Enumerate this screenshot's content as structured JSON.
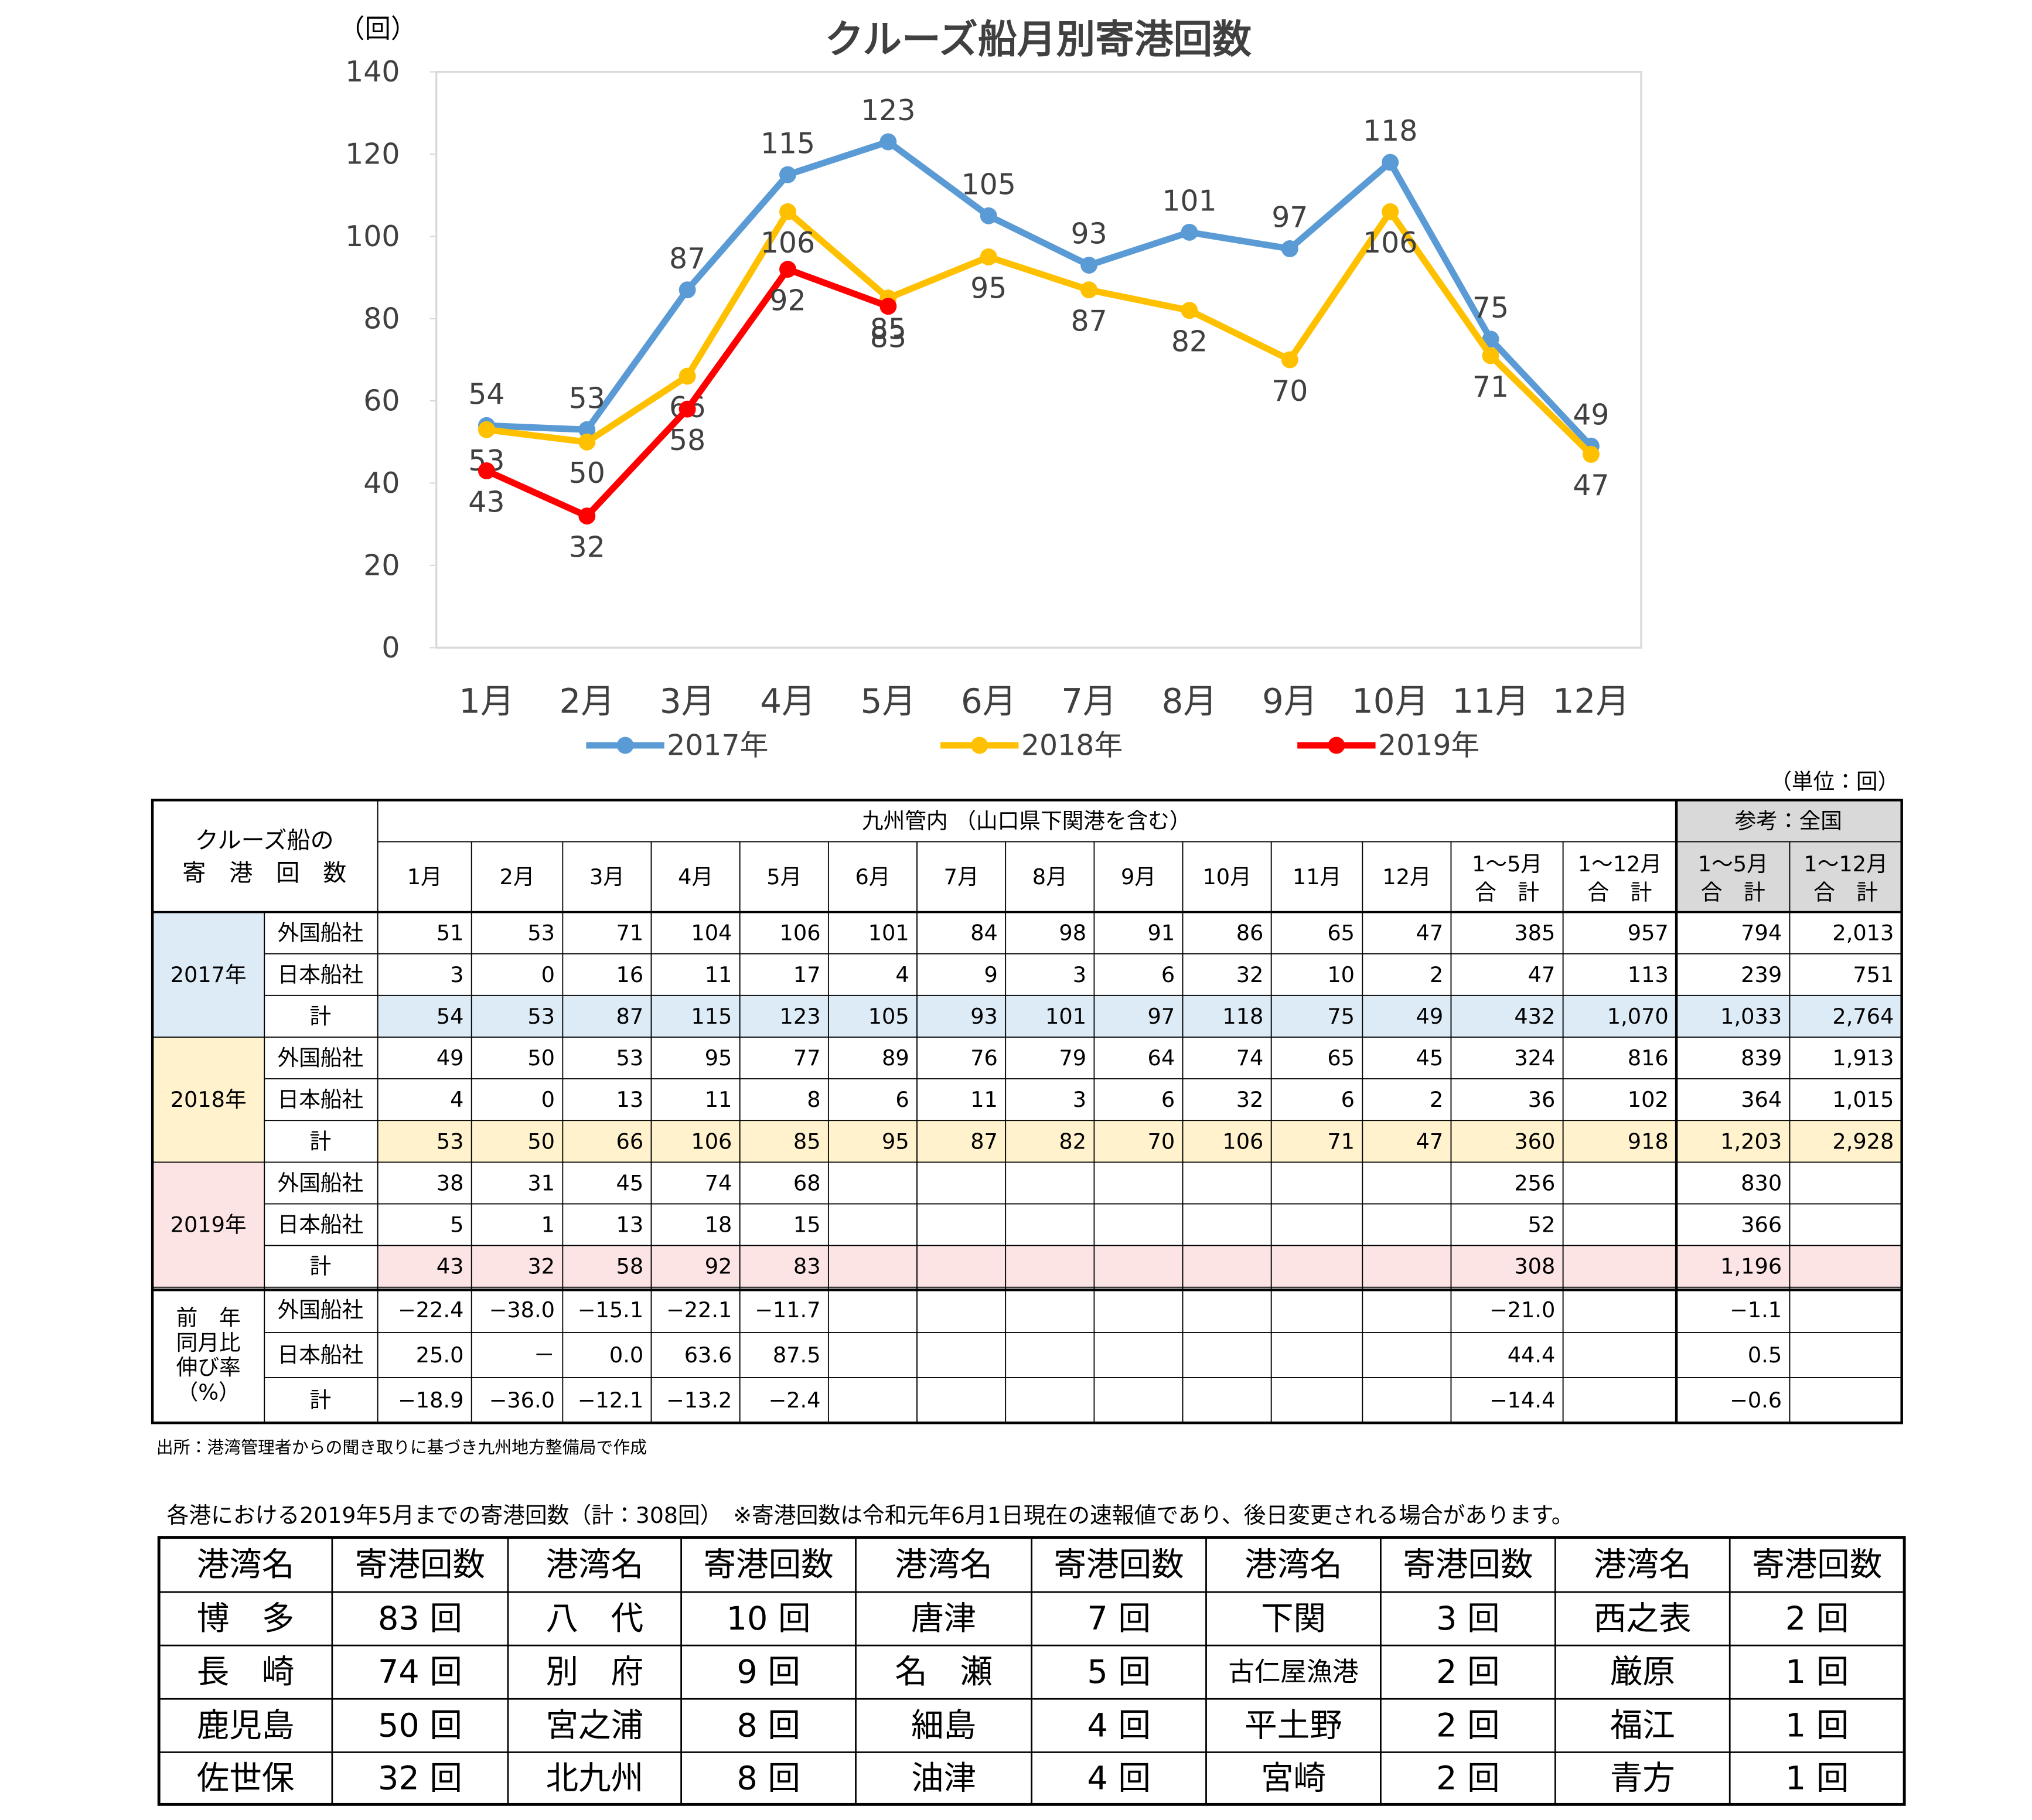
{
  "chart_data": {
    "type": "line",
    "title": "クルーズ船月別寄港回数",
    "y_label": "（回）",
    "categories": [
      "1月",
      "2月",
      "3月",
      "4月",
      "5月",
      "6月",
      "7月",
      "8月",
      "9月",
      "10月",
      "11月",
      "12月"
    ],
    "series": [
      {
        "name": "2017年",
        "color": "#5b9bd5",
        "values": [
          54,
          53,
          87,
          115,
          123,
          105,
          93,
          101,
          97,
          118,
          75,
          49
        ]
      },
      {
        "name": "2018年",
        "color": "#ffc000",
        "values": [
          53,
          50,
          66,
          106,
          85,
          95,
          87,
          82,
          70,
          106,
          71,
          47
        ]
      },
      {
        "name": "2019年",
        "color": "#ff0000",
        "values": [
          43,
          32,
          58,
          92,
          83,
          null,
          null,
          null,
          null,
          null,
          null,
          null
        ]
      }
    ],
    "ylim": [
      0,
      140
    ],
    "yticks": [
      0,
      20,
      40,
      60,
      80,
      100,
      120,
      140
    ],
    "grid": false,
    "legend": "bottom"
  },
  "table": {
    "unit": "（単位：回）",
    "corner": [
      "クルーズ船の",
      "寄　港　回　数"
    ],
    "region": "九州管内 （山口県下関港を含む）",
    "reference": "参考：全国",
    "columns": [
      [
        "1月"
      ],
      [
        "2月"
      ],
      [
        "3月"
      ],
      [
        "4月"
      ],
      [
        "5月"
      ],
      [
        "6月"
      ],
      [
        "7月"
      ],
      [
        "8月"
      ],
      [
        "9月"
      ],
      [
        "10月"
      ],
      [
        "11月"
      ],
      [
        "12月"
      ],
      [
        "1～5月",
        "合　計"
      ],
      [
        "1～12月",
        "合　計"
      ],
      [
        "1～5月",
        "合　計"
      ],
      [
        "1～12月",
        "合　計"
      ]
    ],
    "groups": [
      {
        "label": [
          "2017年"
        ],
        "rows": [
          {
            "label": "外国船社",
            "cells": [
              "51",
              "53",
              "71",
              "104",
              "106",
              "101",
              "84",
              "98",
              "91",
              "86",
              "65",
              "47",
              "385",
              "957",
              "794",
              "2,013"
            ]
          },
          {
            "label": "日本船社",
            "cells": [
              "3",
              "0",
              "16",
              "11",
              "17",
              "4",
              "9",
              "3",
              "6",
              "32",
              "10",
              "2",
              "47",
              "113",
              "239",
              "751"
            ]
          },
          {
            "label": "計",
            "cells": [
              "54",
              "53",
              "87",
              "115",
              "123",
              "105",
              "93",
              "101",
              "97",
              "118",
              "75",
              "49",
              "432",
              "1,070",
              "1,033",
              "2,764"
            ]
          }
        ]
      },
      {
        "label": [
          "2018年"
        ],
        "rows": [
          {
            "label": "外国船社",
            "cells": [
              "49",
              "50",
              "53",
              "95",
              "77",
              "89",
              "76",
              "79",
              "64",
              "74",
              "65",
              "45",
              "324",
              "816",
              "839",
              "1,913"
            ]
          },
          {
            "label": "日本船社",
            "cells": [
              "4",
              "0",
              "13",
              "11",
              "8",
              "6",
              "11",
              "3",
              "6",
              "32",
              "6",
              "2",
              "36",
              "102",
              "364",
              "1,015"
            ]
          },
          {
            "label": "計",
            "cells": [
              "53",
              "50",
              "66",
              "106",
              "85",
              "95",
              "87",
              "82",
              "70",
              "106",
              "71",
              "47",
              "360",
              "918",
              "1,203",
              "2,928"
            ]
          }
        ]
      },
      {
        "label": [
          "2019年"
        ],
        "rows": [
          {
            "label": "外国船社",
            "cells": [
              "38",
              "31",
              "45",
              "74",
              "68",
              null,
              null,
              null,
              null,
              null,
              null,
              null,
              "256",
              null,
              "830",
              null
            ]
          },
          {
            "label": "日本船社",
            "cells": [
              "5",
              "1",
              "13",
              "18",
              "15",
              null,
              null,
              null,
              null,
              null,
              null,
              null,
              "52",
              null,
              "366",
              null
            ]
          },
          {
            "label": "計",
            "cells": [
              "43",
              "32",
              "58",
              "92",
              "83",
              null,
              null,
              null,
              null,
              null,
              null,
              null,
              "308",
              null,
              "1,196",
              null
            ]
          }
        ]
      },
      {
        "label": [
          "前　年",
          "同月比",
          "伸び率",
          "（%）"
        ],
        "rows": [
          {
            "label": "外国船社",
            "cells": [
              "−22.4",
              "−38.0",
              "−15.1",
              "−22.1",
              "−11.7",
              null,
              null,
              null,
              null,
              null,
              null,
              null,
              "−21.0",
              null,
              "−1.1",
              null
            ]
          },
          {
            "label": "日本船社",
            "cells": [
              "25.0",
              "－",
              "0.0",
              "63.6",
              "87.5",
              null,
              null,
              null,
              null,
              null,
              null,
              null,
              "44.4",
              null,
              "0.5",
              null
            ]
          },
          {
            "label": "計",
            "cells": [
              "−18.9",
              "−36.0",
              "−12.1",
              "−13.2",
              "−2.4",
              null,
              null,
              null,
              null,
              null,
              null,
              null,
              "−14.4",
              null,
              "−0.6",
              null
            ]
          }
        ]
      }
    ],
    "source": "出所：港湾管理者からの聞き取りに基づき九州地方整備局で作成"
  },
  "ports": {
    "note": "各港における2019年5月までの寄港回数（計：308回）　※寄港回数は令和元年6月1日現在の速報値であり、後日変更される場合があります。",
    "header": [
      "港湾名",
      "寄港回数",
      "港湾名",
      "寄港回数",
      "港湾名",
      "寄港回数",
      "港湾名",
      "寄港回数",
      "港湾名",
      "寄港回数"
    ],
    "rows": [
      [
        "博　多",
        "83 回",
        "八　代",
        "10 回",
        "唐津",
        "7 回",
        "下関",
        "3 回",
        "西之表",
        "2 回"
      ],
      [
        "長　崎",
        "74 回",
        "別　府",
        "9 回",
        "名　瀬",
        "5 回",
        "古仁屋漁港",
        "2 回",
        "厳原",
        "1 回"
      ],
      [
        "鹿児島",
        "50 回",
        "宮之浦",
        "8 回",
        "細島",
        "4 回",
        "平土野",
        "2 回",
        "福江",
        "1 回"
      ],
      [
        "佐世保",
        "32 回",
        "北九州",
        "8 回",
        "油津",
        "4 回",
        "宮崎",
        "2 回",
        "青方",
        "1 回"
      ]
    ]
  }
}
